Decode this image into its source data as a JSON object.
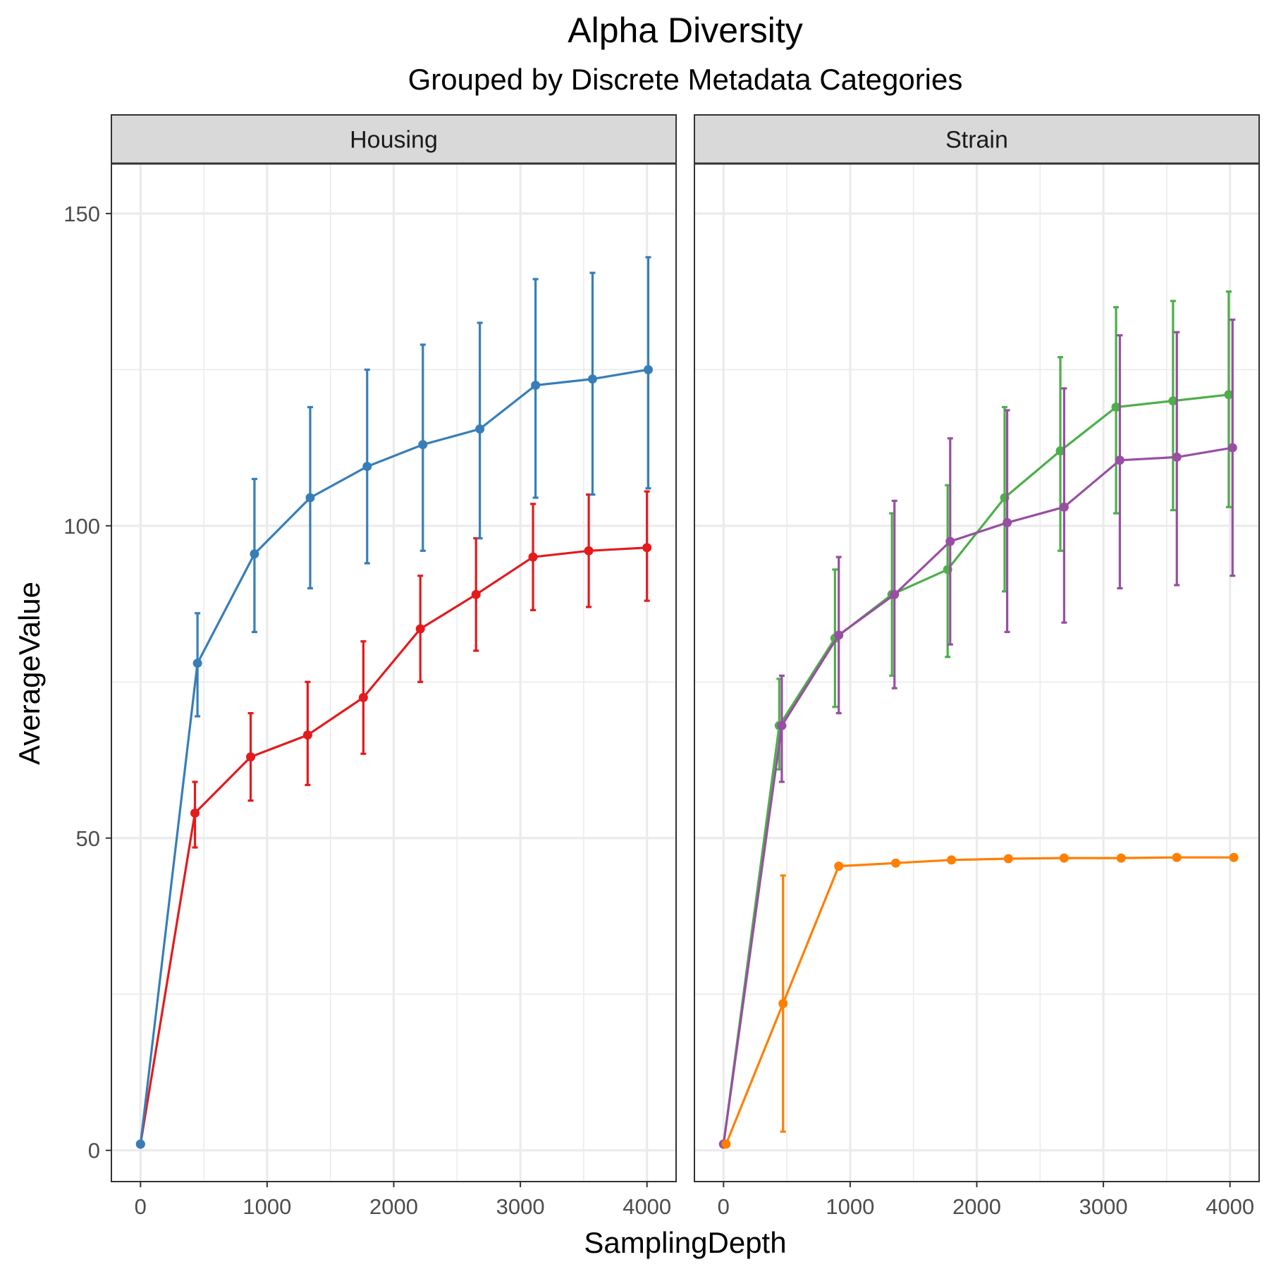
{
  "chart_data": {
    "type": "line",
    "title": "Alpha Diversity",
    "subtitle": "Grouped by Discrete Metadata Categories",
    "xlabel": "SamplingDepth",
    "ylabel": "AverageValue",
    "xlim": [
      -230,
      4230
    ],
    "ylim": [
      -5,
      158
    ],
    "x_ticks": [
      0,
      1000,
      2000,
      3000,
      4000
    ],
    "x_tick_labels": [
      "0",
      "1000",
      "2000",
      "3000",
      "4000"
    ],
    "y_ticks": [
      0,
      50,
      100,
      150
    ],
    "y_tick_labels": [
      "0",
      "50",
      "100",
      "150"
    ],
    "grid": true,
    "legend": "none",
    "panels": [
      {
        "strip": "Housing",
        "series": [
          {
            "color": "#E41A1C",
            "x": [
              0,
              430,
              870,
              1320,
              1760,
              2210,
              2650,
              3100,
              3540,
              4000
            ],
            "y": [
              1,
              54,
              63,
              66.5,
              72.5,
              83.5,
              89,
              95,
              96,
              96.5
            ],
            "lo": [
              null,
              48.5,
              56,
              58.5,
              63.5,
              75,
              80,
              86.5,
              87,
              88
            ],
            "hi": [
              null,
              59,
              70,
              75,
              81.5,
              92,
              98,
              103.5,
              105,
              105.5
            ]
          },
          {
            "color": "#377EB8",
            "x": [
              0,
              450,
              900,
              1340,
              1790,
              2230,
              2680,
              3120,
              3570,
              4010
            ],
            "y": [
              1,
              78,
              95.5,
              104.5,
              109.5,
              113,
              115.5,
              122.5,
              123.5,
              125
            ],
            "lo": [
              null,
              69.5,
              83,
              90,
              94,
              96,
              98,
              104.5,
              105,
              106
            ],
            "hi": [
              null,
              86,
              107.5,
              119,
              125,
              129,
              132.5,
              139.5,
              140.5,
              143
            ]
          }
        ]
      },
      {
        "strip": "Strain",
        "series": [
          {
            "color": "#4DAF4A",
            "x": [
              0,
              440,
              880,
              1330,
              1770,
              2220,
              2660,
              3100,
              3550,
              3990
            ],
            "y": [
              1,
              68,
              82,
              89,
              93,
              104.5,
              112,
              119,
              120,
              121
            ],
            "lo": [
              null,
              61,
              71,
              76,
              79,
              89.5,
              96,
              102,
              102.5,
              103
            ],
            "hi": [
              null,
              75.5,
              93,
              102,
              106.5,
              119,
              127,
              135,
              136,
              137.5
            ]
          },
          {
            "color": "#984EA3",
            "x": [
              0,
              460,
              910,
              1350,
              1790,
              2240,
              2690,
              3130,
              3580,
              4020
            ],
            "y": [
              1,
              68,
              82.5,
              89,
              97.5,
              100.5,
              103,
              110.5,
              111,
              112.5
            ],
            "lo": [
              null,
              59,
              70,
              74,
              81,
              83,
              84.5,
              90,
              90.5,
              92
            ],
            "hi": [
              null,
              76,
              95,
              104,
              114,
              118.5,
              122,
              130.5,
              131,
              133
            ]
          },
          {
            "color": "#FF7F00",
            "x": [
              20,
              470,
              910,
              1360,
              1800,
              2250,
              2690,
              3140,
              3580,
              4030
            ],
            "y": [
              1,
              23.5,
              45.5,
              46,
              46.5,
              46.7,
              46.8,
              46.8,
              46.9,
              46.9
            ],
            "lo": [
              null,
              3,
              null,
              null,
              null,
              null,
              null,
              null,
              null,
              null
            ],
            "hi": [
              null,
              44,
              null,
              null,
              null,
              null,
              null,
              null,
              null,
              null
            ]
          }
        ]
      }
    ]
  }
}
